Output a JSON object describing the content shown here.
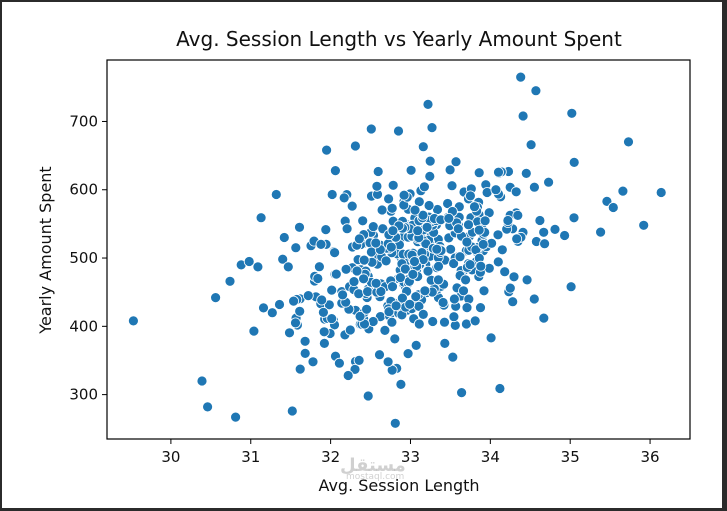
{
  "chart_data": {
    "type": "scatter",
    "title": "Avg. Session Length vs Yearly Amount Spent",
    "xlabel": "Avg. Session Length",
    "ylabel": "Yearly Amount Spent",
    "xlim": [
      29.2,
      36.5
    ],
    "ylim": [
      235,
      790
    ],
    "xticks": [
      30,
      31,
      32,
      33,
      34,
      35,
      36
    ],
    "yticks": [
      300,
      400,
      500,
      600,
      700
    ],
    "grid": false,
    "marker_color": "#1f77b4",
    "marker_edge_color": "#ffffff",
    "points": [
      [
        29.53,
        408
      ],
      [
        30.39,
        320
      ],
      [
        30.46,
        282
      ],
      [
        30.56,
        442
      ],
      [
        30.74,
        466
      ],
      [
        30.81,
        267
      ],
      [
        30.88,
        490
      ],
      [
        30.98,
        495
      ],
      [
        31.04,
        393
      ],
      [
        31.09,
        487
      ],
      [
        31.13,
        559
      ],
      [
        31.16,
        427
      ],
      [
        31.27,
        420
      ],
      [
        31.32,
        593
      ],
      [
        31.36,
        432
      ],
      [
        31.42,
        530
      ],
      [
        31.47,
        487
      ],
      [
        31.52,
        276
      ],
      [
        31.56,
        405
      ],
      [
        31.61,
        545
      ],
      [
        31.68,
        378
      ],
      [
        31.72,
        445
      ],
      [
        31.78,
        348
      ],
      [
        31.84,
        470
      ],
      [
        31.88,
        520
      ],
      [
        31.92,
        392
      ],
      [
        31.95,
        658
      ],
      [
        32.02,
        593
      ],
      [
        32.06,
        628
      ],
      [
        32.11,
        346
      ],
      [
        32.17,
        588
      ],
      [
        32.22,
        328
      ],
      [
        32.27,
        576
      ],
      [
        32.31,
        664
      ],
      [
        32.36,
        528
      ],
      [
        32.42,
        497
      ],
      [
        32.47,
        298
      ],
      [
        32.51,
        689
      ],
      [
        32.58,
        605
      ],
      [
        32.63,
        451
      ],
      [
        32.68,
        394
      ],
      [
        32.72,
        348
      ],
      [
        32.78,
        540
      ],
      [
        32.81,
        258
      ],
      [
        32.85,
        686
      ],
      [
        32.88,
        315
      ],
      [
        32.92,
        592
      ],
      [
        32.97,
        360
      ],
      [
        33.03,
        476
      ],
      [
        33.09,
        540
      ],
      [
        33.16,
        663
      ],
      [
        33.22,
        725
      ],
      [
        33.27,
        691
      ],
      [
        33.33,
        513
      ],
      [
        33.38,
        556
      ],
      [
        33.43,
        375
      ],
      [
        33.48,
        558
      ],
      [
        33.53,
        355
      ],
      [
        33.57,
        641
      ],
      [
        33.64,
        303
      ],
      [
        33.69,
        468
      ],
      [
        33.75,
        591
      ],
      [
        33.81,
        408
      ],
      [
        33.86,
        625
      ],
      [
        33.91,
        520
      ],
      [
        33.96,
        596
      ],
      [
        34.01,
        383
      ],
      [
        34.07,
        600
      ],
      [
        34.12,
        309
      ],
      [
        34.18,
        480
      ],
      [
        34.22,
        555
      ],
      [
        34.28,
        436
      ],
      [
        34.33,
        528
      ],
      [
        34.38,
        765
      ],
      [
        34.41,
        708
      ],
      [
        34.45,
        624
      ],
      [
        34.51,
        666
      ],
      [
        34.57,
        745
      ],
      [
        34.62,
        555
      ],
      [
        34.68,
        521
      ],
      [
        34.73,
        611
      ],
      [
        34.81,
        542
      ],
      [
        34.93,
        533
      ],
      [
        35.02,
        712
      ],
      [
        35.05,
        640
      ],
      [
        35.38,
        538
      ],
      [
        35.46,
        583
      ],
      [
        35.54,
        574
      ],
      [
        35.66,
        598
      ],
      [
        35.73,
        670
      ],
      [
        35.92,
        548
      ],
      [
        36.14,
        596
      ],
      [
        32.05,
        508
      ],
      [
        32.33,
        481
      ],
      [
        32.57,
        463
      ],
      [
        32.76,
        516
      ],
      [
        33.05,
        495
      ],
      [
        33.35,
        468
      ],
      [
        33.62,
        502
      ],
      [
        33.88,
        488
      ],
      [
        34.15,
        512
      ],
      [
        34.46,
        468
      ],
      [
        32.15,
        446
      ],
      [
        32.45,
        425
      ],
      [
        32.82,
        430
      ],
      [
        33.18,
        452
      ],
      [
        33.55,
        440
      ],
      [
        33.92,
        452
      ],
      [
        34.25,
        456
      ],
      [
        34.55,
        440
      ]
    ]
  },
  "watermark": "مستقل",
  "watermark_sub": "mostaql.com"
}
